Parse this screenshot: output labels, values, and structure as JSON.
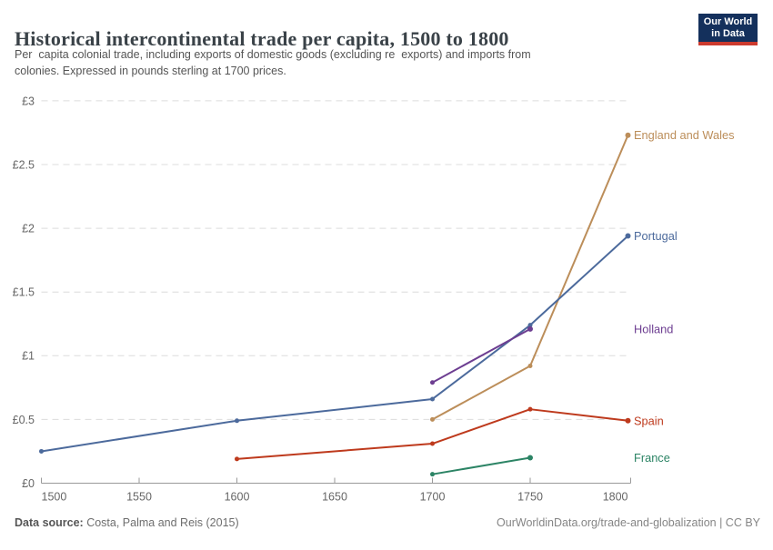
{
  "header": {
    "title": "Historical intercontinental trade per capita, 1500 to 1800",
    "subtitle": "Per  capita colonial trade, including exports of domestic goods (excluding re  exports) and imports from\ncolonies. Expressed in pounds sterling at 1700 prices.",
    "logo": {
      "line1": "Our World",
      "line2": "in Data",
      "bg_color": "#14305c",
      "bar_color": "#cc3a2e"
    }
  },
  "footer": {
    "source_label": "Data source:",
    "source_value": " Costa, Palma and Reis (2015)",
    "attribution": "OurWorldinData.org/trade-and-globalization | CC BY"
  },
  "chart_data": {
    "type": "line",
    "title": "Historical intercontinental trade per capita, 1500 to 1800",
    "xlabel": "",
    "ylabel": "pounds sterling at 1700 prices",
    "xlim": [
      1500,
      1800
    ],
    "ylim": [
      0,
      3
    ],
    "x_ticks": [
      1500,
      1550,
      1600,
      1650,
      1700,
      1750,
      1800
    ],
    "x_tick_labels": [
      "1500",
      "1550",
      "1600",
      "1650",
      "1700",
      "1750",
      "1800"
    ],
    "y_ticks": [
      0,
      0.5,
      1,
      1.5,
      2,
      2.5,
      3
    ],
    "y_tick_labels": [
      "£0",
      "£0.5",
      "£1",
      "£1.5",
      "£2",
      "£2.5",
      "£3"
    ],
    "grid": "horizontal-dashed",
    "legend_position": "end-of-line-labels",
    "series": [
      {
        "name": "England and Wales",
        "color": "#BC8E5A",
        "x": [
          1700,
          1750,
          1800
        ],
        "values": [
          0.5,
          0.92,
          2.73
        ]
      },
      {
        "name": "Portugal",
        "color": "#4C6A9C",
        "x": [
          1500,
          1600,
          1700,
          1750,
          1800
        ],
        "values": [
          0.25,
          0.49,
          0.66,
          1.24,
          1.94
        ]
      },
      {
        "name": "Holland",
        "color": "#6D3E91",
        "x": [
          1700,
          1750
        ],
        "values": [
          0.79,
          1.21
        ]
      },
      {
        "name": "Spain",
        "color": "#BE3A1D",
        "x": [
          1600,
          1700,
          1750,
          1800
        ],
        "values": [
          0.19,
          0.31,
          0.58,
          0.49
        ]
      },
      {
        "name": "France",
        "color": "#2C8465",
        "x": [
          1700,
          1750
        ],
        "values": [
          0.07,
          0.2
        ]
      }
    ],
    "style": {
      "grid_color": "#dcdcdc",
      "axis_color": "#9a9a9a",
      "tick_label_color": "#666666"
    }
  }
}
